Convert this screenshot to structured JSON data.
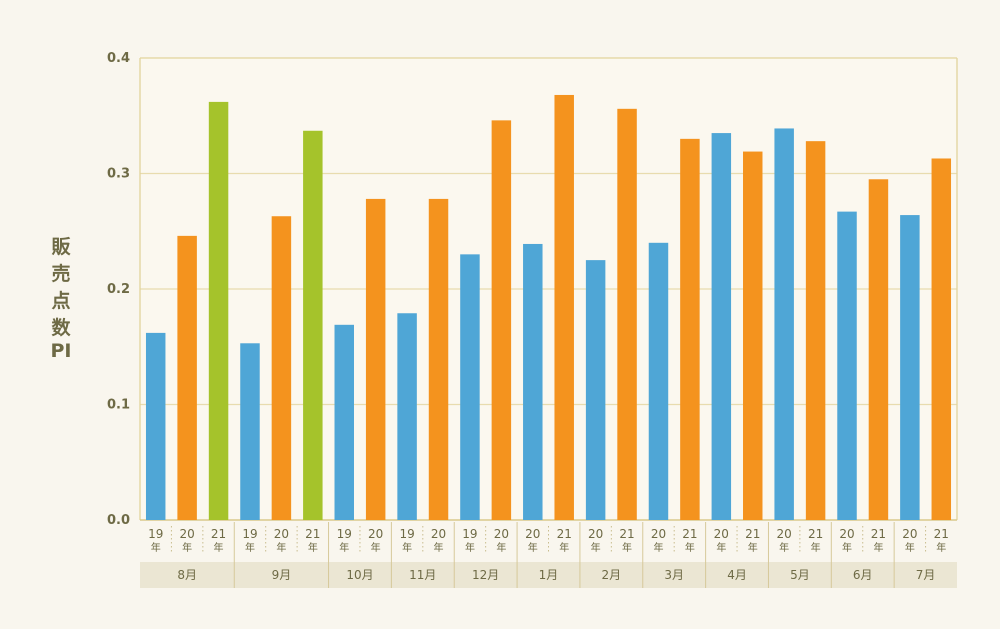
{
  "colors": {
    "y2019": "#4fa6d6",
    "y2020": "#f4931e",
    "y2021_green": "#a5c32b",
    "y2021_orange": "#f4931e",
    "grid": "#e8dcae",
    "frame": "#e2d49c",
    "month_band": "#ebe6d3",
    "text": "#6e6a45"
  },
  "chart_data": {
    "type": "bar",
    "title": "",
    "ylabel": "販売点数PI",
    "ylim": [
      0,
      0.4
    ],
    "yticks": [
      "0.0",
      "0.1",
      "0.2",
      "0.3",
      "0.4"
    ],
    "grid": true,
    "year_suffix": "年",
    "groups": [
      {
        "month": "8月",
        "bars": [
          {
            "year": "19",
            "value": 0.162,
            "color": "#4fa6d6"
          },
          {
            "year": "20",
            "value": 0.246,
            "color": "#f4931e"
          },
          {
            "year": "21",
            "value": 0.362,
            "color": "#a5c32b"
          }
        ]
      },
      {
        "month": "9月",
        "bars": [
          {
            "year": "19",
            "value": 0.153,
            "color": "#4fa6d6"
          },
          {
            "year": "20",
            "value": 0.263,
            "color": "#f4931e"
          },
          {
            "year": "21",
            "value": 0.337,
            "color": "#a5c32b"
          }
        ]
      },
      {
        "month": "10月",
        "bars": [
          {
            "year": "19",
            "value": 0.169,
            "color": "#4fa6d6"
          },
          {
            "year": "20",
            "value": 0.278,
            "color": "#f4931e"
          }
        ]
      },
      {
        "month": "11月",
        "bars": [
          {
            "year": "19",
            "value": 0.179,
            "color": "#4fa6d6"
          },
          {
            "year": "20",
            "value": 0.278,
            "color": "#f4931e"
          }
        ]
      },
      {
        "month": "12月",
        "bars": [
          {
            "year": "19",
            "value": 0.23,
            "color": "#4fa6d6"
          },
          {
            "year": "20",
            "value": 0.346,
            "color": "#f4931e"
          }
        ]
      },
      {
        "month": "1月",
        "bars": [
          {
            "year": "20",
            "value": 0.239,
            "color": "#4fa6d6"
          },
          {
            "year": "21",
            "value": 0.368,
            "color": "#f4931e"
          }
        ]
      },
      {
        "month": "2月",
        "bars": [
          {
            "year": "20",
            "value": 0.225,
            "color": "#4fa6d6"
          },
          {
            "year": "21",
            "value": 0.356,
            "color": "#f4931e"
          }
        ]
      },
      {
        "month": "3月",
        "bars": [
          {
            "year": "20",
            "value": 0.24,
            "color": "#4fa6d6"
          },
          {
            "year": "21",
            "value": 0.33,
            "color": "#f4931e"
          }
        ]
      },
      {
        "month": "4月",
        "bars": [
          {
            "year": "20",
            "value": 0.335,
            "color": "#4fa6d6"
          },
          {
            "year": "21",
            "value": 0.319,
            "color": "#f4931e"
          }
        ]
      },
      {
        "month": "5月",
        "bars": [
          {
            "year": "20",
            "value": 0.339,
            "color": "#4fa6d6"
          },
          {
            "year": "21",
            "value": 0.328,
            "color": "#f4931e"
          }
        ]
      },
      {
        "month": "6月",
        "bars": [
          {
            "year": "20",
            "value": 0.267,
            "color": "#4fa6d6"
          },
          {
            "year": "21",
            "value": 0.295,
            "color": "#f4931e"
          }
        ]
      },
      {
        "month": "7月",
        "bars": [
          {
            "year": "20",
            "value": 0.264,
            "color": "#4fa6d6"
          },
          {
            "year": "21",
            "value": 0.313,
            "color": "#f4931e"
          }
        ]
      }
    ]
  }
}
